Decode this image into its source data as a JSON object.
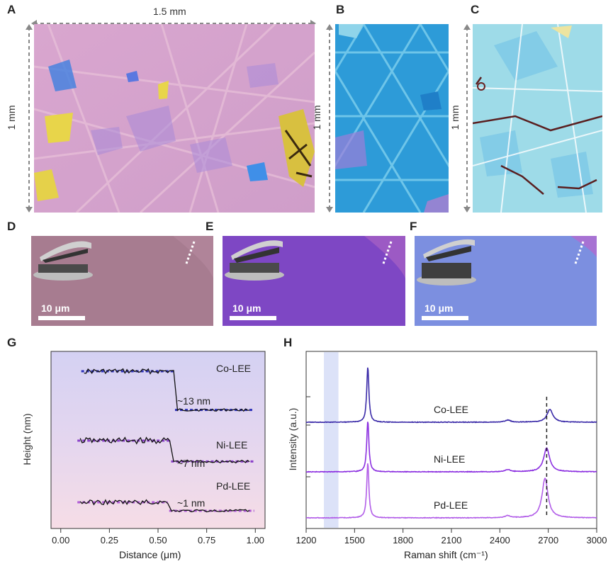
{
  "figure": {
    "panel_labels": {
      "a": "A",
      "b": "B",
      "c": "C",
      "d": "D",
      "e": "E",
      "f": "F",
      "g": "G",
      "h": "H"
    },
    "dim_width": "1.5 mm",
    "dim_height_a": "1 mm",
    "dim_height_b": "1 mm",
    "dim_height_c": "1 mm",
    "scale_bar": "10 μm",
    "colors": {
      "co": "#2b2fb8",
      "ni": "#8a3fc9",
      "pd": "#b05ad6"
    }
  },
  "chart_data": [
    {
      "type": "line",
      "title": "",
      "xlabel": "Distance (μm)",
      "ylabel": "Height (nm)",
      "xlim": [
        -0.05,
        1.05
      ],
      "xticks": [
        "0.00",
        "0.25",
        "0.50",
        "0.75",
        "1.00"
      ],
      "series": [
        {
          "name": "Co-LEE",
          "step_nm": 13,
          "step_label": "~13 nm",
          "x_step": 0.58,
          "x_range": [
            0.12,
            0.98
          ]
        },
        {
          "name": "Ni-LEE",
          "step_nm": 7,
          "step_label": "~7 nm",
          "x_step": 0.56,
          "x_range": [
            0.1,
            0.98
          ]
        },
        {
          "name": "Pd-LEE",
          "step_nm": 1,
          "step_label": "~1 nm",
          "x_step": 0.55,
          "x_range": [
            0.1,
            0.98
          ]
        }
      ]
    },
    {
      "type": "line",
      "title": "",
      "xlabel": "Raman shift (cm⁻¹)",
      "ylabel": "Intensity (a.u.)",
      "xlim": [
        1200,
        3000
      ],
      "xticks": [
        "1200",
        "1500",
        "1800",
        "2100",
        "2400",
        "2700",
        "3000"
      ],
      "highlight_band": [
        1310,
        1400
      ],
      "reference_line_x": 2690,
      "series": [
        {
          "name": "Co-LEE",
          "G_peak": 1582,
          "2D_peak": 2710,
          "color": "#3a2aa8"
        },
        {
          "name": "Ni-LEE",
          "G_peak": 1582,
          "2D_peak": 2690,
          "color": "#8b2fe0"
        },
        {
          "name": "Pd-LEE",
          "G_peak": 1582,
          "2D_peak": 2680,
          "color": "#b25ee8"
        }
      ]
    }
  ]
}
